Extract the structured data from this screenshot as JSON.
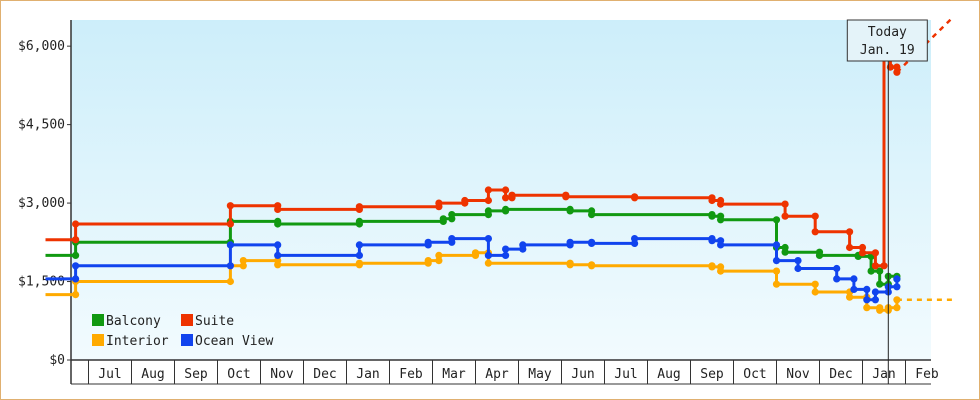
{
  "chart_data": {
    "type": "line",
    "ylim": [
      0,
      6500
    ],
    "y_ticks": [
      "$0",
      "$1,500",
      "$3,000",
      "$4,500",
      "$6,000"
    ],
    "y_tick_values": [
      0,
      1500,
      3000,
      4500,
      6000
    ],
    "grid": false,
    "legend_placement": "bottom-left",
    "x_ticks": [
      "Jul",
      "Aug",
      "Sep",
      "Oct",
      "Nov",
      "Dec",
      "Jan",
      "Feb",
      "Mar",
      "Apr",
      "May",
      "Jun",
      "Jul",
      "Aug",
      "Sep",
      "Oct",
      "Nov",
      "Dec",
      "Jan",
      "Feb"
    ],
    "x_tick_values": [
      1,
      2,
      3,
      4,
      5,
      6,
      7,
      8,
      9,
      10,
      11,
      12,
      13,
      14,
      15,
      16,
      17,
      18,
      19,
      20
    ],
    "x_unit_note": "months since Jun of first year (0 = start of Jun)",
    "today": {
      "label": "Today",
      "date": "Jan. 19",
      "x": 19.1
    },
    "series": [
      {
        "name": "Balcony",
        "color": "#119911",
        "points": [
          [
            -0.5,
            2000
          ],
          [
            0.2,
            2000
          ],
          [
            0.2,
            2250
          ],
          [
            3.8,
            2250
          ],
          [
            3.8,
            2650
          ],
          [
            4.9,
            2650
          ],
          [
            4.9,
            2600
          ],
          [
            6.8,
            2600
          ],
          [
            6.8,
            2650
          ],
          [
            8.75,
            2650
          ],
          [
            8.75,
            2700
          ],
          [
            8.95,
            2700
          ],
          [
            8.95,
            2780
          ],
          [
            9.8,
            2780
          ],
          [
            9.8,
            2850
          ],
          [
            10.2,
            2850
          ],
          [
            10.2,
            2880
          ],
          [
            11.7,
            2880
          ],
          [
            11.7,
            2850
          ],
          [
            12.2,
            2850
          ],
          [
            12.2,
            2780
          ],
          [
            15.0,
            2780
          ],
          [
            15.0,
            2750
          ],
          [
            15.2,
            2750
          ],
          [
            15.2,
            2680
          ],
          [
            16.5,
            2680
          ],
          [
            16.5,
            2150
          ],
          [
            16.7,
            2150
          ],
          [
            16.7,
            2060
          ],
          [
            17.5,
            2060
          ],
          [
            17.5,
            2000
          ],
          [
            18.4,
            2000
          ],
          [
            18.4,
            1980
          ],
          [
            18.7,
            1980
          ],
          [
            18.7,
            1700
          ],
          [
            18.9,
            1700
          ],
          [
            18.9,
            1450
          ],
          [
            19.1,
            1450
          ],
          [
            19.1,
            1600
          ],
          [
            19.3,
            1600
          ],
          [
            19.3,
            1550
          ]
        ]
      },
      {
        "name": "Suite",
        "color": "#ee3300",
        "points": [
          [
            -0.5,
            2300
          ],
          [
            0.2,
            2300
          ],
          [
            0.2,
            2600
          ],
          [
            3.8,
            2600
          ],
          [
            3.8,
            2950
          ],
          [
            4.9,
            2950
          ],
          [
            4.9,
            2880
          ],
          [
            6.8,
            2880
          ],
          [
            6.8,
            2930
          ],
          [
            8.65,
            2930
          ],
          [
            8.65,
            3000
          ],
          [
            9.25,
            3000
          ],
          [
            9.25,
            3050
          ],
          [
            9.8,
            3050
          ],
          [
            9.8,
            3250
          ],
          [
            10.2,
            3250
          ],
          [
            10.2,
            3100
          ],
          [
            10.35,
            3100
          ],
          [
            10.35,
            3150
          ],
          [
            11.6,
            3150
          ],
          [
            11.6,
            3120
          ],
          [
            13.2,
            3120
          ],
          [
            13.2,
            3100
          ],
          [
            15.0,
            3100
          ],
          [
            15.0,
            3050
          ],
          [
            15.2,
            3050
          ],
          [
            15.2,
            2980
          ],
          [
            16.7,
            2980
          ],
          [
            16.7,
            2750
          ],
          [
            17.4,
            2750
          ],
          [
            17.4,
            2450
          ],
          [
            18.2,
            2450
          ],
          [
            18.2,
            2150
          ],
          [
            18.5,
            2150
          ],
          [
            18.5,
            2050
          ],
          [
            18.8,
            2050
          ],
          [
            18.8,
            1800
          ],
          [
            19.0,
            1800
          ],
          [
            19.0,
            6000
          ],
          [
            19.15,
            6000
          ],
          [
            19.15,
            5600
          ],
          [
            19.3,
            5600
          ],
          [
            19.3,
            5500
          ]
        ],
        "projection": [
          [
            19.3,
            5500
          ],
          [
            20.6,
            6550
          ]
        ]
      },
      {
        "name": "Interior",
        "color": "#ffaa00",
        "points": [
          [
            -0.5,
            1250
          ],
          [
            0.2,
            1250
          ],
          [
            0.2,
            1500
          ],
          [
            3.8,
            1500
          ],
          [
            3.8,
            1800
          ],
          [
            4.1,
            1800
          ],
          [
            4.1,
            1900
          ],
          [
            4.9,
            1900
          ],
          [
            4.9,
            1820
          ],
          [
            6.8,
            1820
          ],
          [
            6.8,
            1850
          ],
          [
            8.4,
            1850
          ],
          [
            8.4,
            1900
          ],
          [
            8.65,
            1900
          ],
          [
            8.65,
            2000
          ],
          [
            9.5,
            2000
          ],
          [
            9.5,
            2050
          ],
          [
            9.8,
            2050
          ],
          [
            9.8,
            1850
          ],
          [
            11.7,
            1850
          ],
          [
            11.7,
            1820
          ],
          [
            12.2,
            1820
          ],
          [
            12.2,
            1800
          ],
          [
            15.0,
            1800
          ],
          [
            15.0,
            1780
          ],
          [
            15.2,
            1780
          ],
          [
            15.2,
            1700
          ],
          [
            16.5,
            1700
          ],
          [
            16.5,
            1450
          ],
          [
            17.4,
            1450
          ],
          [
            17.4,
            1300
          ],
          [
            18.2,
            1300
          ],
          [
            18.2,
            1200
          ],
          [
            18.6,
            1200
          ],
          [
            18.6,
            1000
          ],
          [
            18.9,
            1000
          ],
          [
            18.9,
            950
          ],
          [
            19.1,
            950
          ],
          [
            19.1,
            1000
          ],
          [
            19.3,
            1000
          ],
          [
            19.3,
            1150
          ]
        ],
        "projection": [
          [
            19.3,
            1150
          ],
          [
            20.6,
            1150
          ]
        ]
      },
      {
        "name": "Ocean View",
        "color": "#1144ee",
        "points": [
          [
            -0.5,
            1550
          ],
          [
            0.2,
            1550
          ],
          [
            0.2,
            1800
          ],
          [
            3.8,
            1800
          ],
          [
            3.8,
            2200
          ],
          [
            4.9,
            2200
          ],
          [
            4.9,
            2000
          ],
          [
            6.8,
            2000
          ],
          [
            6.8,
            2200
          ],
          [
            8.4,
            2200
          ],
          [
            8.4,
            2250
          ],
          [
            8.95,
            2250
          ],
          [
            8.95,
            2320
          ],
          [
            9.8,
            2320
          ],
          [
            9.8,
            2000
          ],
          [
            10.2,
            2000
          ],
          [
            10.2,
            2120
          ],
          [
            10.6,
            2120
          ],
          [
            10.6,
            2200
          ],
          [
            11.7,
            2200
          ],
          [
            11.7,
            2250
          ],
          [
            12.2,
            2250
          ],
          [
            12.2,
            2230
          ],
          [
            13.2,
            2230
          ],
          [
            13.2,
            2320
          ],
          [
            15.0,
            2320
          ],
          [
            15.0,
            2280
          ],
          [
            15.2,
            2280
          ],
          [
            15.2,
            2200
          ],
          [
            16.5,
            2200
          ],
          [
            16.5,
            1900
          ],
          [
            17.0,
            1900
          ],
          [
            17.0,
            1750
          ],
          [
            17.9,
            1750
          ],
          [
            17.9,
            1550
          ],
          [
            18.3,
            1550
          ],
          [
            18.3,
            1350
          ],
          [
            18.6,
            1350
          ],
          [
            18.6,
            1150
          ],
          [
            18.8,
            1150
          ],
          [
            18.8,
            1300
          ],
          [
            19.1,
            1300
          ],
          [
            19.1,
            1400
          ],
          [
            19.3,
            1400
          ],
          [
            19.3,
            1550
          ]
        ]
      }
    ],
    "legend": [
      {
        "name": "Balcony",
        "color": "#119911"
      },
      {
        "name": "Suite",
        "color": "#ee3300"
      },
      {
        "name": "Interior",
        "color": "#ffaa00"
      },
      {
        "name": "Ocean View",
        "color": "#1144ee"
      }
    ]
  }
}
